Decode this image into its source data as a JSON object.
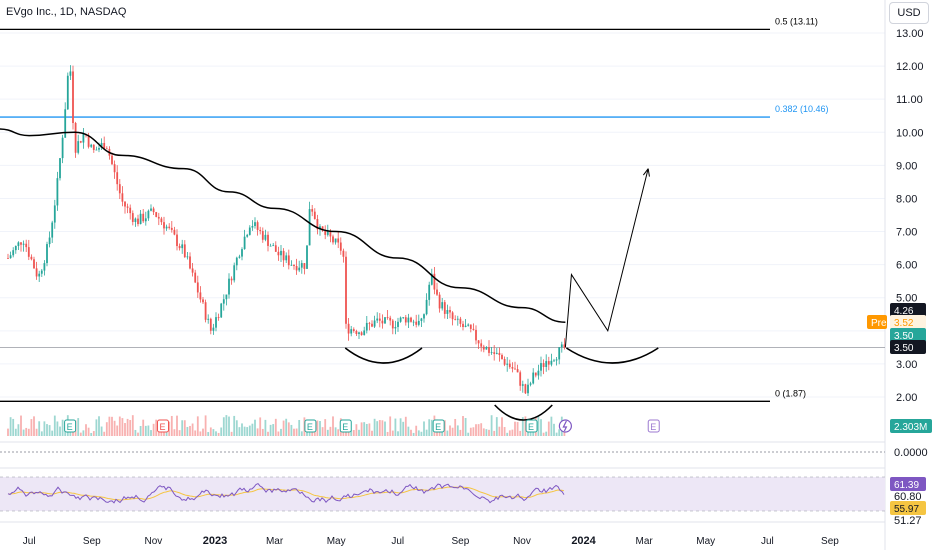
{
  "header": {
    "title": "EVgo Inc., 1D, NASDAQ",
    "currency_button": "USD"
  },
  "colors": {
    "bull": "#26a69a",
    "bear": "#ef5350",
    "ma": "#000000",
    "fib_black": "#000000",
    "fib_blue": "#2196f3",
    "rsi": "#7e57c2",
    "rsi_ma": "#f5c542",
    "rsi_fill": "#ede7f6",
    "grid": "#e0e3eb",
    "pre": "#ff9800"
  },
  "price_axis": {
    "ticks": [
      "13.00",
      "12.00",
      "11.00",
      "10.00",
      "9.00",
      "8.00",
      "7.00",
      "6.00",
      "5.00",
      "4.00",
      "3.00",
      "2.00"
    ],
    "badges": [
      {
        "label": "4.26",
        "kind": "dark"
      },
      {
        "label": "Pre",
        "kind": "pre"
      },
      {
        "label": "3.52",
        "kind": "pre"
      },
      {
        "label": "3.50",
        "kind": "teal"
      },
      {
        "label": "3.50",
        "kind": "dark"
      }
    ],
    "volume_badge": "2.303M",
    "indicator_zero": "0.0000",
    "rsi_labels": [
      "61.39",
      "60.80",
      "55.97",
      "51.27"
    ]
  },
  "time_axis": [
    "Jul",
    "Sep",
    "Nov",
    "2023",
    "Mar",
    "May",
    "Jul",
    "Sep",
    "Nov",
    "2024",
    "Mar",
    "May",
    "Jul",
    "Sep"
  ],
  "fib_levels": [
    {
      "label": "0.5 (13.11)",
      "value": 13.11,
      "color": "#000000"
    },
    {
      "label": "0.382 (10.46)",
      "value": 10.46,
      "color": "#2196f3"
    },
    {
      "label": "0 (1.87)",
      "value": 1.87,
      "color": "#000000"
    }
  ],
  "earnings_markers": [
    "E",
    "E",
    "E",
    "E",
    "E",
    "E",
    "E"
  ],
  "chart_data": {
    "type": "candlestick",
    "title": "EVgo Inc., 1D, NASDAQ",
    "ylim": [
      1.3,
      13.6
    ],
    "x_range": [
      "2022-06",
      "2024-09"
    ],
    "close_series": [
      [
        "2022-06-10",
        6.2
      ],
      [
        "2022-06-25",
        6.8
      ],
      [
        "2022-07-10",
        5.6
      ],
      [
        "2022-07-20",
        6.6
      ],
      [
        "2022-07-28",
        8.2
      ],
      [
        "2022-08-04",
        10.2
      ],
      [
        "2022-08-10",
        12.3
      ],
      [
        "2022-08-15",
        9.5
      ],
      [
        "2022-08-25",
        10.0
      ],
      [
        "2022-09-02",
        9.4
      ],
      [
        "2022-09-15",
        9.7
      ],
      [
        "2022-10-01",
        7.9
      ],
      [
        "2022-10-15",
        7.3
      ],
      [
        "2022-11-01",
        7.6
      ],
      [
        "2022-11-15",
        7.1
      ],
      [
        "2022-12-01",
        6.4
      ],
      [
        "2022-12-15",
        5.2
      ],
      [
        "2022-12-28",
        4.0
      ],
      [
        "2023-01-10",
        5.0
      ],
      [
        "2023-01-25",
        6.4
      ],
      [
        "2023-02-05",
        7.3
      ],
      [
        "2023-02-20",
        6.8
      ],
      [
        "2023-03-05",
        6.3
      ],
      [
        "2023-03-20",
        6.0
      ],
      [
        "2023-04-01",
        6.0
      ],
      [
        "2023-04-05",
        7.9
      ],
      [
        "2023-04-15",
        7.0
      ],
      [
        "2023-04-25",
        6.8
      ],
      [
        "2023-05-08",
        6.4
      ],
      [
        "2023-05-10",
        4.1
      ],
      [
        "2023-05-25",
        4.0
      ],
      [
        "2023-06-10",
        4.3
      ],
      [
        "2023-06-25",
        4.2
      ],
      [
        "2023-07-10",
        4.4
      ],
      [
        "2023-07-25",
        4.2
      ],
      [
        "2023-08-03",
        5.7
      ],
      [
        "2023-08-10",
        4.9
      ],
      [
        "2023-08-25",
        4.3
      ],
      [
        "2023-09-10",
        4.0
      ],
      [
        "2023-09-25",
        3.5
      ],
      [
        "2023-10-10",
        3.2
      ],
      [
        "2023-10-25",
        2.8
      ],
      [
        "2023-11-05",
        2.1
      ],
      [
        "2023-11-12",
        2.6
      ],
      [
        "2023-11-25",
        3.1
      ],
      [
        "2023-12-05",
        3.3
      ],
      [
        "2023-12-14",
        3.5
      ]
    ],
    "moving_average": [
      [
        "2022-06-01",
        10.1
      ],
      [
        "2022-07-01",
        9.9
      ],
      [
        "2022-08-15",
        10.0
      ],
      [
        "2022-10-01",
        9.3
      ],
      [
        "2022-12-01",
        8.9
      ],
      [
        "2023-01-15",
        8.2
      ],
      [
        "2023-03-01",
        7.7
      ],
      [
        "2023-05-01",
        7.0
      ],
      [
        "2023-07-01",
        6.2
      ],
      [
        "2023-09-01",
        5.3
      ],
      [
        "2023-11-01",
        4.7
      ],
      [
        "2023-12-14",
        4.26
      ]
    ],
    "projection_path": [
      [
        "2023-12-20",
        5.7
      ],
      [
        "2024-01-25",
        4.0
      ],
      [
        "2024-03-05",
        8.9
      ]
    ],
    "patterns": [
      {
        "type": "arc",
        "label": "left shoulder",
        "from": "2023-05-10",
        "to": "2023-07-25"
      },
      {
        "type": "arc",
        "label": "head",
        "from": "2023-10-05",
        "to": "2023-12-01"
      },
      {
        "type": "arc",
        "label": "right shoulder",
        "from": "2023-12-15",
        "to": "2024-03-15"
      }
    ],
    "volume_last": "2.303M",
    "rsi": {
      "values_last": [
        61.39,
        55.97
      ],
      "bands": [
        60.8,
        51.27
      ]
    }
  }
}
